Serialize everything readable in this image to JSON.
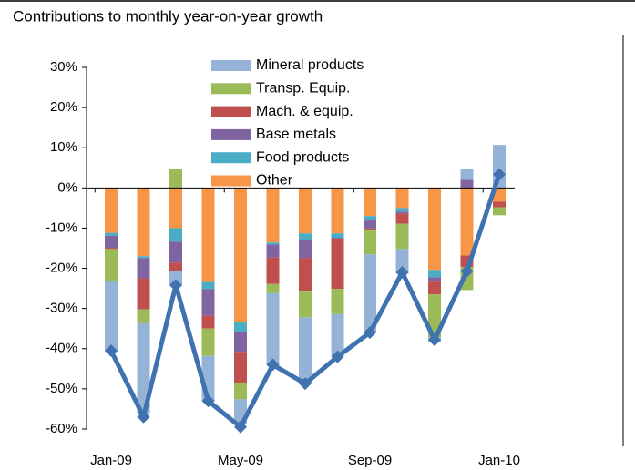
{
  "chart_data": {
    "type": "bar",
    "stacked": true,
    "title": "Contributions to monthly year-on-year growth",
    "categories": [
      "Jan-09",
      null,
      null,
      null,
      "May-09",
      null,
      null,
      null,
      "Sep-09",
      null,
      null,
      null,
      "Jan-10"
    ],
    "series": [
      {
        "name": "Mineral products",
        "color": "#95b3d7",
        "values": [
          -17.6,
          -22.7,
          -3.6,
          -11.3,
          -6.3,
          -17.9,
          -16.3,
          -10.4,
          -19.5,
          -6.1,
          -1.1,
          2.7,
          10.7
        ]
      },
      {
        "name": "Transp. Equip.",
        "color": "#9bbb59",
        "values": [
          -8,
          -3.4,
          4.8,
          -6.8,
          -4.1,
          -2.3,
          -6.4,
          -6.3,
          -5.9,
          -6.3,
          -10.7,
          -5.7,
          -2
        ]
      },
      {
        "name": "Mach. & equip.",
        "color": "#c0504d",
        "values": [
          -0.3,
          -7.7,
          -2,
          -3.2,
          -7.7,
          -6.6,
          -8.4,
          -12.5,
          -0.5,
          -2.5,
          -3.2,
          -2.9,
          -1.4
        ]
      },
      {
        "name": "Base metals",
        "color": "#8064a2",
        "values": [
          -3,
          -5,
          -5.2,
          -6.6,
          -5,
          -3.2,
          -4.5,
          -0.2,
          -2,
          -0.5,
          -1.1,
          2,
          0
        ]
      },
      {
        "name": "Food products",
        "color": "#4bacc6",
        "values": [
          -0.7,
          -0.5,
          -3.4,
          -1.8,
          -2.5,
          -0.5,
          -1.6,
          -1.1,
          -1.1,
          -0.9,
          -1.8,
          0,
          0
        ]
      },
      {
        "name": "Other",
        "color": "#f79646",
        "values": [
          -11.2,
          -17,
          -10,
          -23.4,
          -33.3,
          -13.6,
          -11.3,
          -11.3,
          -7,
          -5,
          -20.4,
          -16.8,
          -3.4
        ]
      }
    ],
    "line": {
      "color": "#4172b0",
      "values": [
        -40.5,
        -57,
        -24.2,
        -53,
        -59.5,
        -44,
        -48.7,
        -42,
        -36,
        -21,
        -37.8,
        -20.7,
        3.4
      ]
    },
    "ylim": [
      -60,
      30
    ],
    "yticks": [
      {
        "value": -60,
        "label": "-60%"
      },
      {
        "value": -50,
        "label": "-50%"
      },
      {
        "value": -40,
        "label": "-40%"
      },
      {
        "value": -30,
        "label": "-30%"
      },
      {
        "value": -20,
        "label": "-20%"
      },
      {
        "value": -10,
        "label": "-10%"
      },
      {
        "value": 0,
        "label": "0%"
      },
      {
        "value": 10,
        "label": "10%"
      },
      {
        "value": 20,
        "label": "20%"
      },
      {
        "value": 30,
        "label": "30%"
      }
    ]
  }
}
